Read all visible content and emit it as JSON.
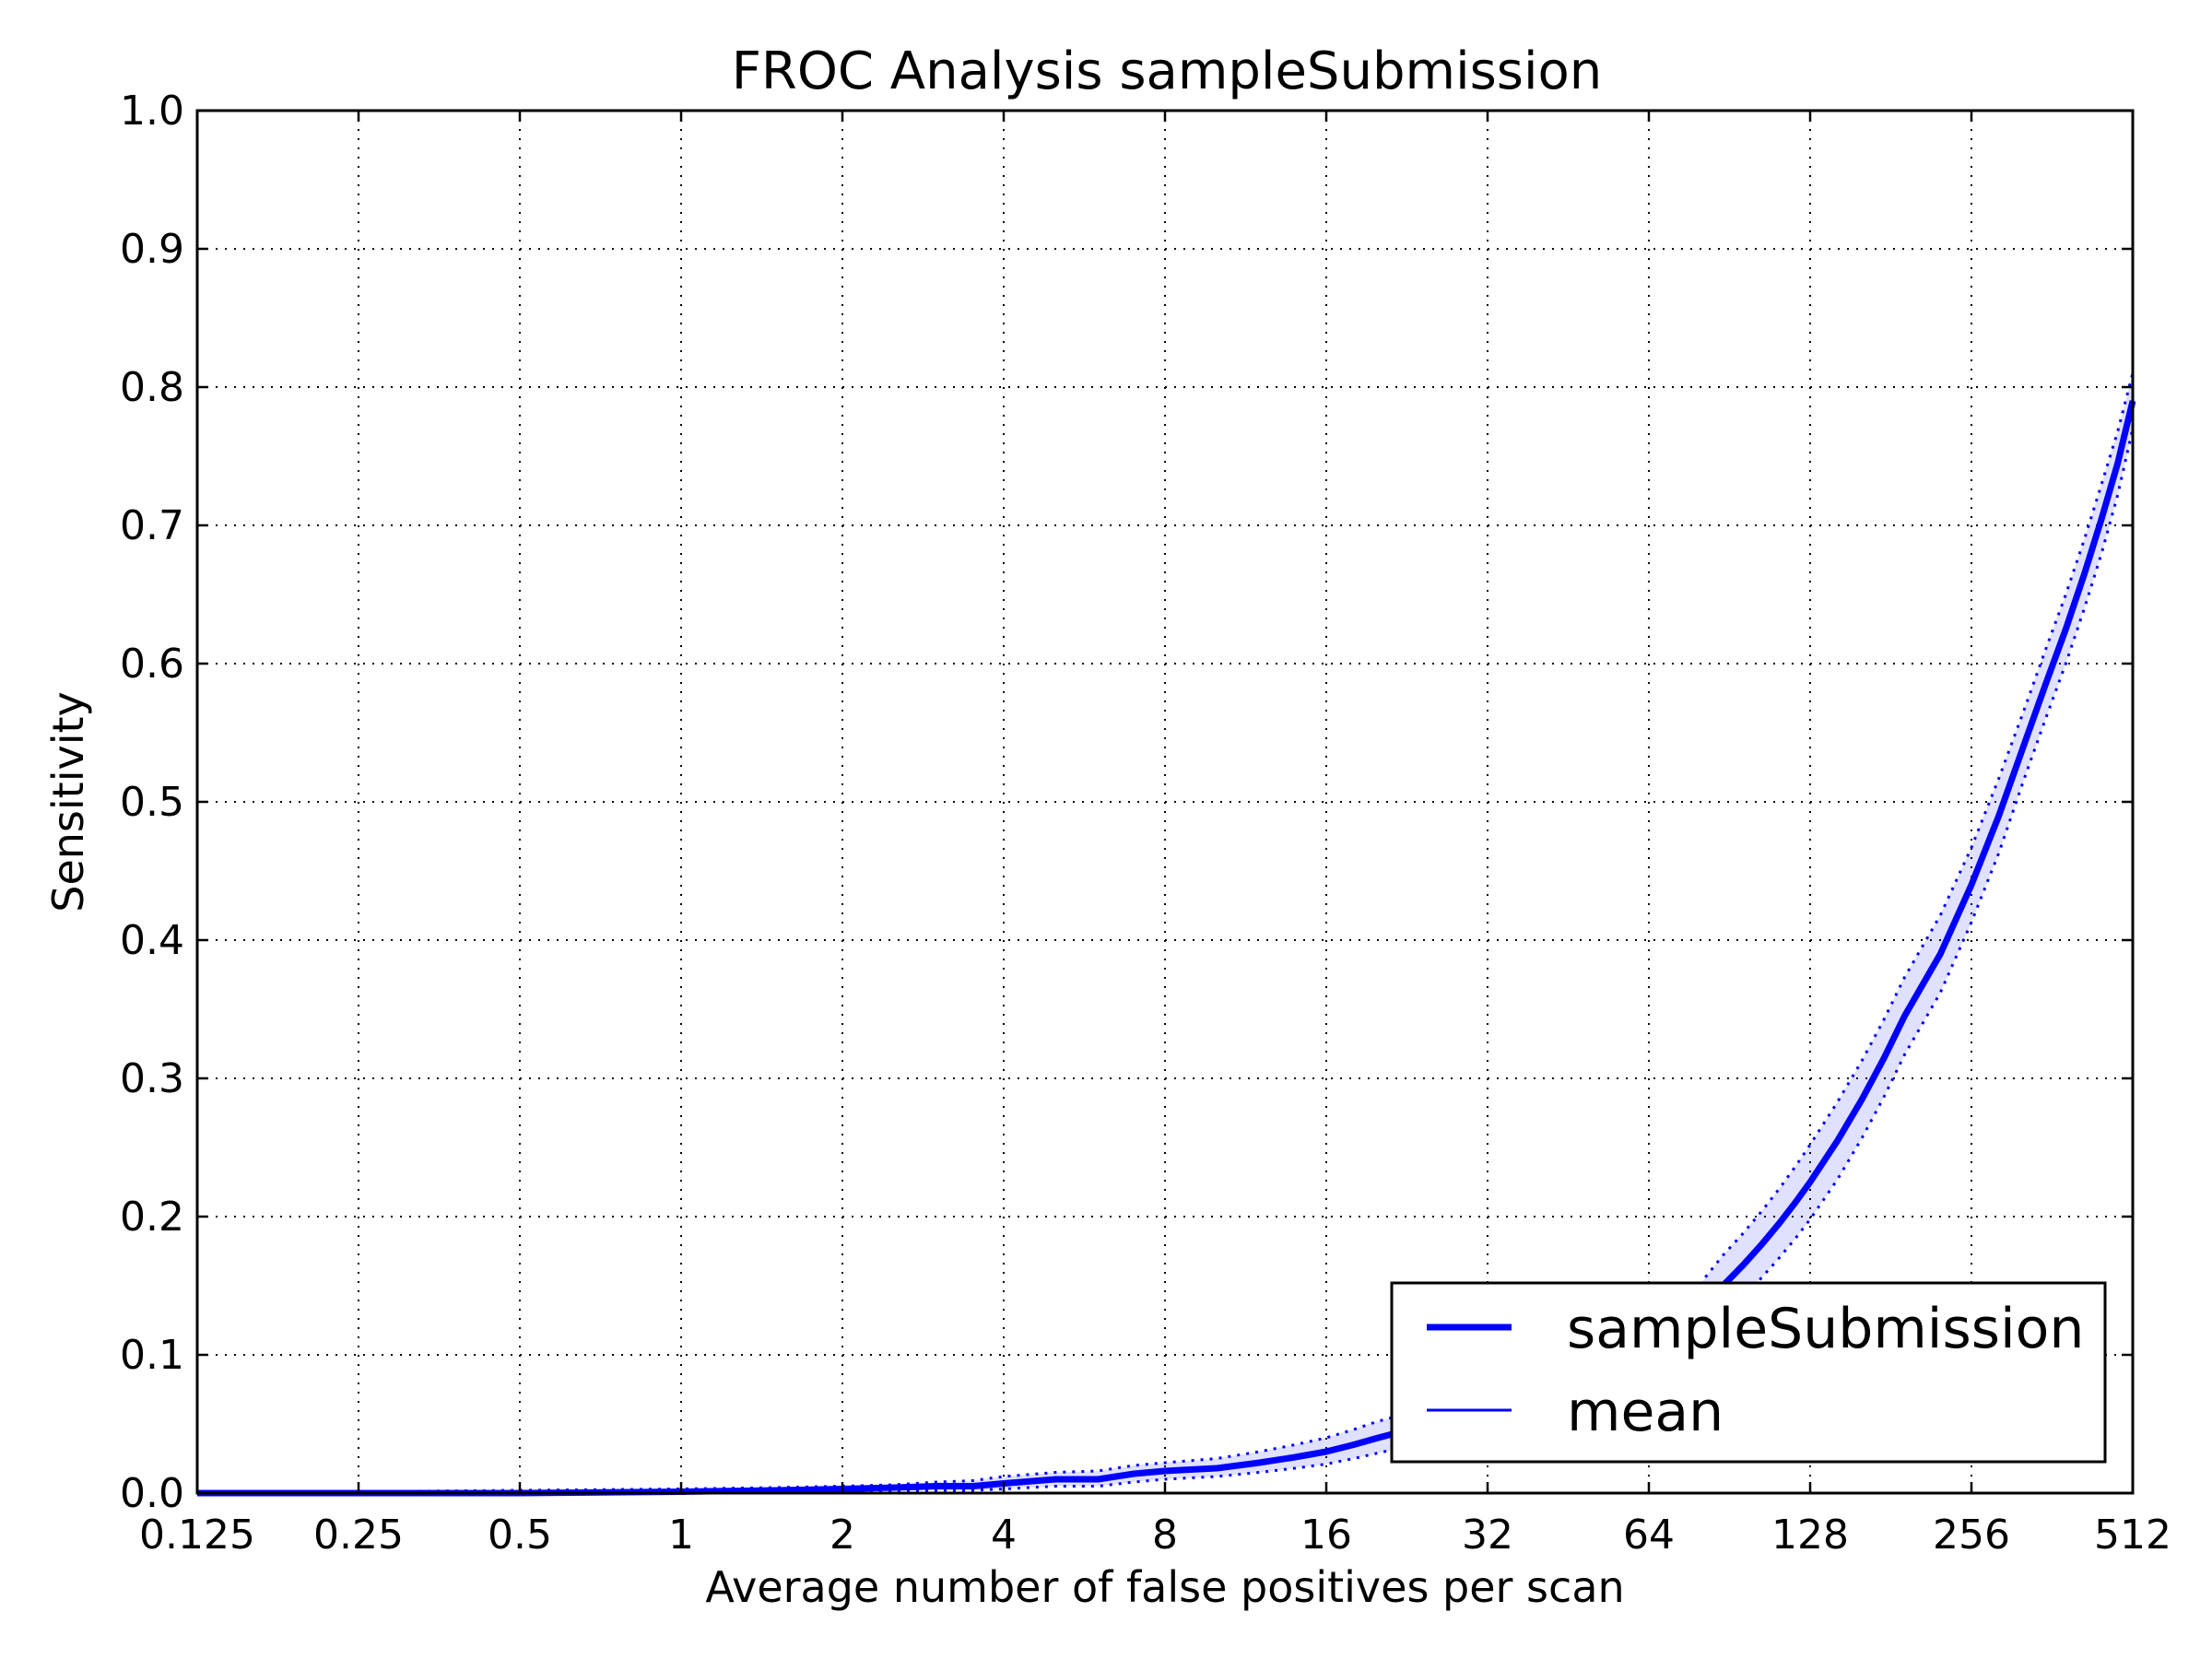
{
  "chart_data": {
    "type": "line",
    "title": "FROC Analysis sampleSubmission",
    "xlabel": "Average number of false positives per scan",
    "ylabel": "Sensitivity",
    "xscale": "log2",
    "xlim": [
      0.125,
      512
    ],
    "ylim": [
      0.0,
      1.0
    ],
    "grid": true,
    "xticks": [
      0.125,
      0.25,
      0.5,
      1,
      2,
      4,
      8,
      16,
      32,
      64,
      128,
      256,
      512
    ],
    "xtick_labels": [
      "0.125",
      "0.25",
      "0.5",
      "1",
      "2",
      "4",
      "8",
      "16",
      "32",
      "64",
      "128",
      "256",
      "512"
    ],
    "yticks": [
      0.0,
      0.1,
      0.2,
      0.3,
      0.4,
      0.5,
      0.6,
      0.7,
      0.8,
      0.9,
      1.0
    ],
    "ytick_labels": [
      "0.0",
      "0.1",
      "0.2",
      "0.3",
      "0.4",
      "0.5",
      "0.6",
      "0.7",
      "0.8",
      "0.9",
      "1.0"
    ],
    "legend": {
      "placement": "lower-right",
      "entries": [
        "sampleSubmission",
        "mean"
      ]
    },
    "color": "#0000ff",
    "series": [
      {
        "name": "sampleSubmission",
        "x": [
          0.125,
          0.25,
          0.5,
          1,
          1.5,
          2,
          2.5,
          3,
          3.5,
          4,
          5,
          6,
          7,
          8,
          10,
          12,
          14,
          16,
          18,
          20,
          24,
          28,
          32,
          40,
          48,
          56,
          64,
          72,
          80,
          88,
          96,
          104,
          112,
          120,
          128,
          144,
          160,
          176,
          192,
          224,
          256,
          288,
          320,
          352,
          384,
          416,
          448,
          480,
          512
        ],
        "values": [
          0.0,
          0.0,
          0.0,
          0.001,
          0.002,
          0.003,
          0.004,
          0.005,
          0.005,
          0.007,
          0.01,
          0.01,
          0.014,
          0.016,
          0.018,
          0.022,
          0.026,
          0.03,
          0.035,
          0.04,
          0.048,
          0.055,
          0.062,
          0.073,
          0.085,
          0.095,
          0.105,
          0.118,
          0.13,
          0.15,
          0.165,
          0.18,
          0.195,
          0.21,
          0.225,
          0.255,
          0.285,
          0.315,
          0.345,
          0.39,
          0.44,
          0.49,
          0.54,
          0.585,
          0.625,
          0.665,
          0.705,
          0.745,
          0.79
        ]
      },
      {
        "name": "upper-bound",
        "x": [
          0.125,
          0.25,
          0.5,
          1,
          1.5,
          2,
          2.5,
          3,
          3.5,
          4,
          5,
          6,
          7,
          8,
          10,
          12,
          14,
          16,
          18,
          20,
          24,
          28,
          32,
          40,
          48,
          56,
          64,
          72,
          80,
          88,
          96,
          104,
          112,
          120,
          128,
          144,
          160,
          176,
          192,
          224,
          256,
          288,
          320,
          352,
          384,
          416,
          448,
          480,
          512
        ],
        "values": [
          0.001,
          0.001,
          0.002,
          0.003,
          0.004,
          0.005,
          0.006,
          0.008,
          0.009,
          0.012,
          0.015,
          0.016,
          0.02,
          0.022,
          0.025,
          0.03,
          0.035,
          0.04,
          0.046,
          0.052,
          0.06,
          0.068,
          0.076,
          0.088,
          0.1,
          0.112,
          0.123,
          0.138,
          0.152,
          0.172,
          0.188,
          0.204,
          0.22,
          0.236,
          0.252,
          0.283,
          0.313,
          0.343,
          0.373,
          0.418,
          0.467,
          0.517,
          0.565,
          0.61,
          0.65,
          0.69,
          0.73,
          0.768,
          0.81
        ]
      },
      {
        "name": "lower-bound",
        "x": [
          0.125,
          0.25,
          0.5,
          1,
          1.5,
          2,
          2.5,
          3,
          3.5,
          4,
          5,
          6,
          7,
          8,
          10,
          12,
          14,
          16,
          18,
          20,
          24,
          28,
          32,
          40,
          48,
          56,
          64,
          72,
          80,
          88,
          96,
          104,
          112,
          120,
          128,
          144,
          160,
          176,
          192,
          224,
          256,
          288,
          320,
          352,
          384,
          416,
          448,
          480,
          512
        ],
        "values": [
          0.0,
          0.0,
          0.0,
          0.0,
          0.0,
          0.001,
          0.002,
          0.002,
          0.002,
          0.003,
          0.005,
          0.005,
          0.008,
          0.01,
          0.012,
          0.015,
          0.018,
          0.021,
          0.025,
          0.029,
          0.036,
          0.042,
          0.048,
          0.058,
          0.07,
          0.078,
          0.087,
          0.098,
          0.108,
          0.128,
          0.142,
          0.156,
          0.17,
          0.184,
          0.198,
          0.227,
          0.257,
          0.287,
          0.317,
          0.362,
          0.413,
          0.463,
          0.515,
          0.56,
          0.6,
          0.64,
          0.68,
          0.722,
          0.77
        ]
      }
    ]
  }
}
